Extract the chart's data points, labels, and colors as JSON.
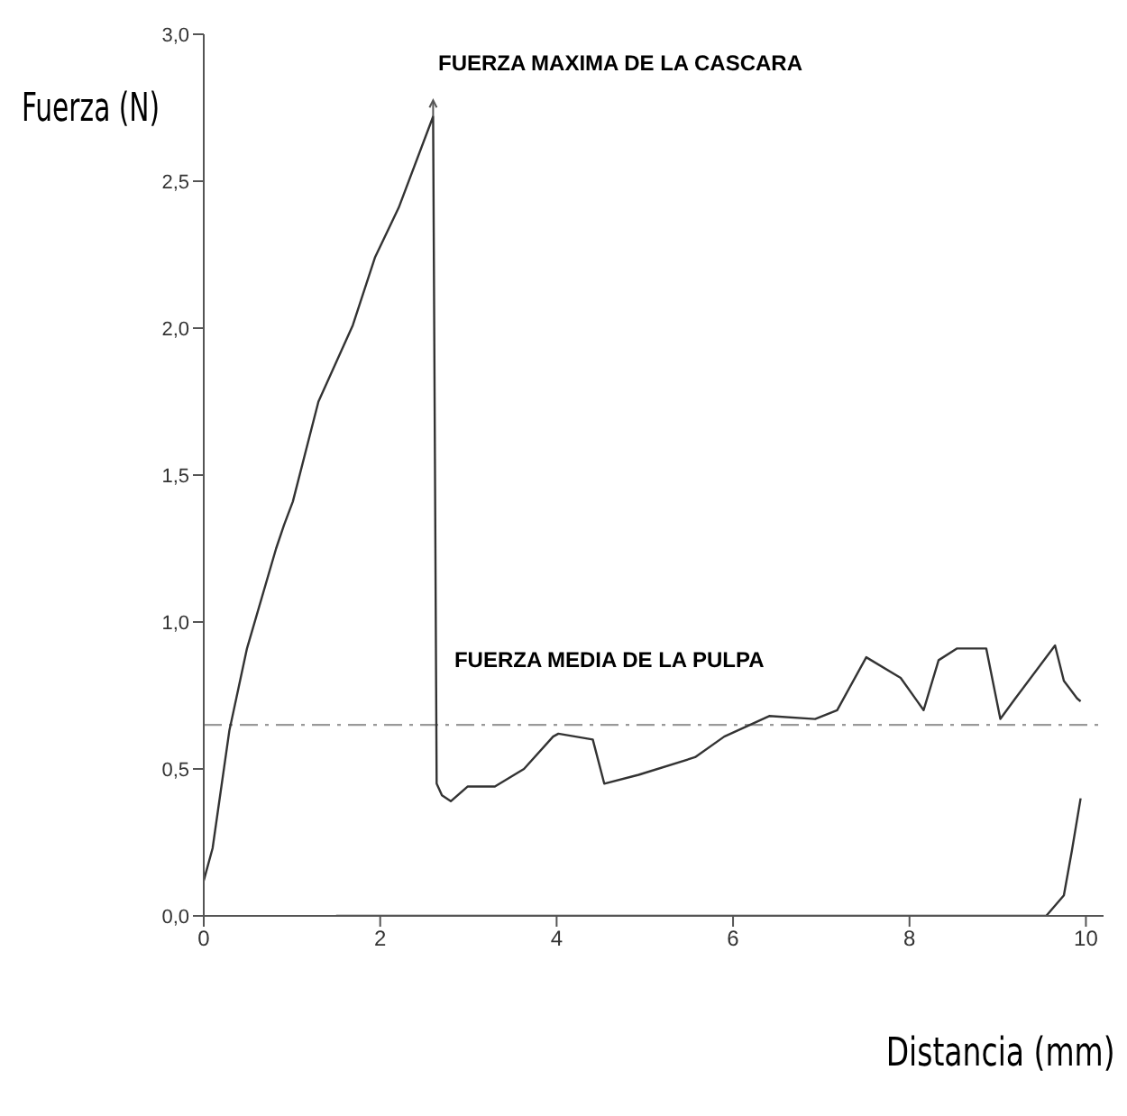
{
  "chart_data": {
    "type": "line",
    "xlabel": "Distancia (mm)",
    "ylabel": "Fuerza (N)",
    "xlim": [
      0,
      10.2
    ],
    "xticks": [
      0,
      2,
      4,
      6,
      8,
      10
    ],
    "ylim": [
      0,
      3
    ],
    "yticks": [
      {
        "value": 0,
        "label": "0,0"
      },
      {
        "value": 0.5,
        "label": "0,5"
      },
      {
        "value": 1,
        "label": "1,0"
      },
      {
        "value": 1.5,
        "label": "1,5"
      },
      {
        "value": 2,
        "label": "2,0"
      },
      {
        "value": 2.5,
        "label": "2,5"
      },
      {
        "value": 3,
        "label": "3,0"
      }
    ],
    "grid": false,
    "marker": "none",
    "line_style": "solid",
    "series": [
      {
        "color": "#333333",
        "x": [
          0,
          0.1,
          0.29,
          0.49,
          0.82,
          0.91,
          1.01,
          1.3,
          1.69,
          1.94,
          2.21,
          2.6,
          2.64,
          2.7,
          2.8,
          2.99,
          3.3,
          3.63,
          3.96,
          4.02,
          4.41,
          4.54,
          4.93,
          5.57,
          5.9,
          6.41,
          6.93,
          7.18,
          7.51,
          7.9,
          8.16,
          8.33,
          8.54,
          8.87,
          9.03,
          9.2,
          9.65,
          9.75,
          9.9,
          9.94
        ],
        "values": [
          0.12,
          0.23,
          0.63,
          0.91,
          1.25,
          1.33,
          1.41,
          1.75,
          2.01,
          2.24,
          2.41,
          2.72,
          0.45,
          0.41,
          0.39,
          0.44,
          0.44,
          0.5,
          0.61,
          0.62,
          0.6,
          0.45,
          0.48,
          0.54,
          0.61,
          0.68,
          0.67,
          0.7,
          0.88,
          0.81,
          0.7,
          0.87,
          0.91,
          0.91,
          0.67,
          0.74,
          0.92,
          0.8,
          0.74,
          0.73
        ]
      },
      {
        "color": "#333333",
        "x": [
          1.5,
          9.55,
          9.75,
          9.84,
          9.94
        ],
        "values": [
          0,
          0,
          0.07,
          0.22,
          0.4
        ]
      }
    ],
    "ref_lines": [
      {
        "axis": "y",
        "value": 0.65,
        "color": "#999999",
        "line_style": "dashed"
      }
    ],
    "annotations": [
      "FUERZA MAXIMA DE LA CASCARA",
      {
        "text": "FUERZA MEDIA DE LA PULPA",
        "x": 2.8,
        "y": 0.65
      }
    ]
  }
}
